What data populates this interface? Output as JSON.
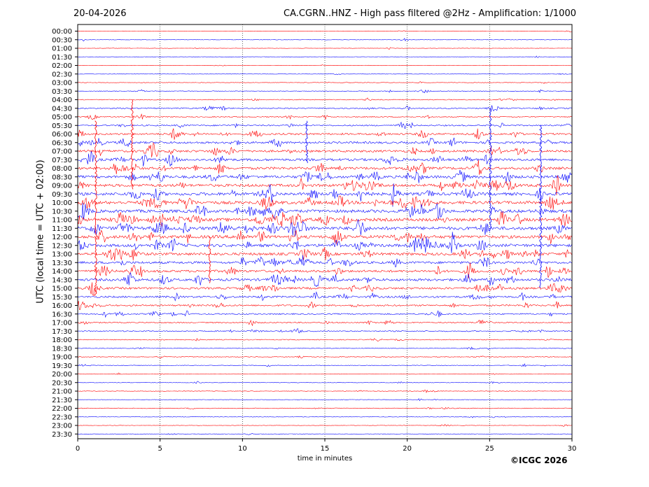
{
  "header": {
    "date": "20-04-2026",
    "title": "CA.CGRN..HNZ - High pass filtered @2Hz - Amplification: 1/1000"
  },
  "footer": {
    "copyright": "©ICGC 2026"
  },
  "chart_data": {
    "type": "line",
    "title": "CA.CGRN..HNZ - High pass filtered @2Hz - Amplification: 1/1000",
    "xlabel": "time in minutes",
    "ylabel": "UTC (local time = UTC + 02:00)",
    "xlim": [
      0,
      30
    ],
    "x_ticks": [
      0,
      5,
      10,
      15,
      20,
      25,
      30
    ],
    "y_ticks": [
      "00:00",
      "00:30",
      "01:00",
      "01:30",
      "02:00",
      "02:30",
      "03:00",
      "03:30",
      "04:00",
      "04:30",
      "05:00",
      "05:30",
      "06:00",
      "06:30",
      "07:00",
      "07:30",
      "08:00",
      "08:30",
      "09:00",
      "09:30",
      "10:00",
      "10:30",
      "11:00",
      "11:30",
      "12:00",
      "12:30",
      "13:00",
      "13:30",
      "14:00",
      "14:30",
      "15:00",
      "15:30",
      "16:00",
      "16:30",
      "17:00",
      "17:30",
      "18:00",
      "18:30",
      "19:00",
      "19:30",
      "20:00",
      "20:30",
      "21:00",
      "21:30",
      "22:00",
      "22:30",
      "23:00",
      "23:30"
    ],
    "grid": "vertical dotted at each x tick",
    "colors": {
      "even_trace": "#ff0000",
      "odd_trace": "#0000ff"
    },
    "trace_activity": [
      0.3,
      0.4,
      0.3,
      0.3,
      0.3,
      0.3,
      0.4,
      0.5,
      0.6,
      0.9,
      0.8,
      1.0,
      1.4,
      1.6,
      1.7,
      1.8,
      1.9,
      2.0,
      2.1,
      2.2,
      2.3,
      2.3,
      2.4,
      2.4,
      2.3,
      2.2,
      2.0,
      1.8,
      1.8,
      1.9,
      1.6,
      1.4,
      1.2,
      1.0,
      0.9,
      0.8,
      0.6,
      0.5,
      0.5,
      0.5,
      0.4,
      0.4,
      0.4,
      0.4,
      0.5,
      0.4,
      0.3,
      0.3
    ]
  }
}
